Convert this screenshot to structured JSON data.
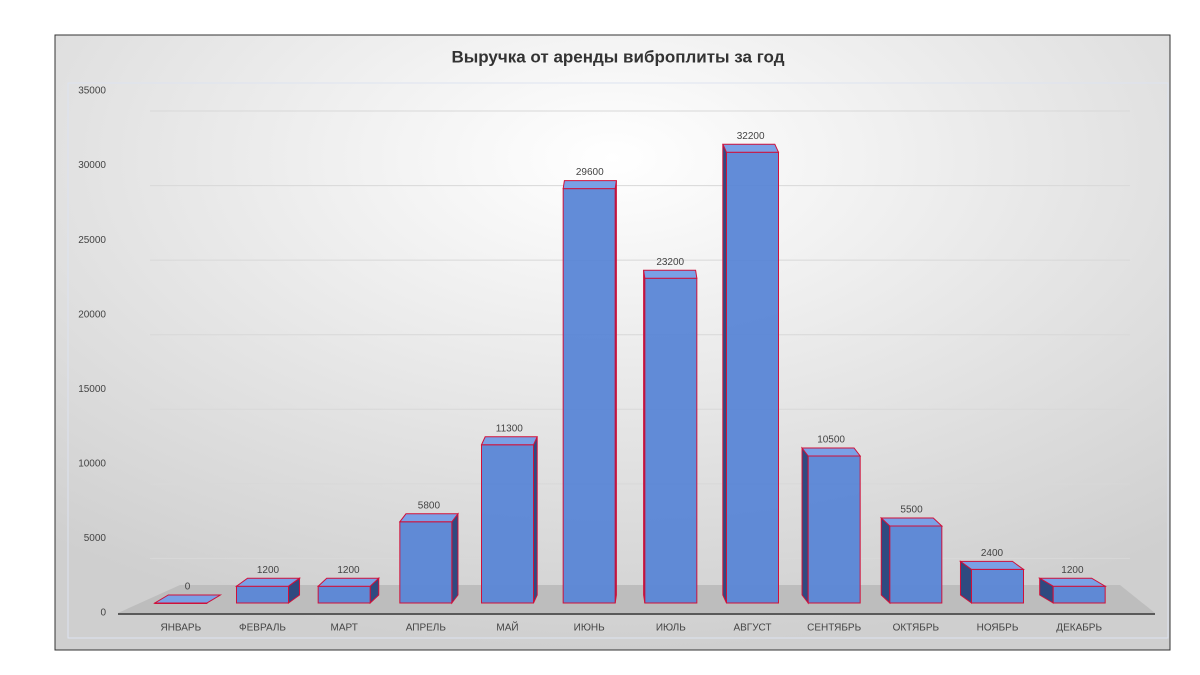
{
  "chart_data": {
    "type": "bar3d",
    "title": "Выручка от аренды виброплиты за год",
    "categories": [
      "ЯНВАРЬ",
      "ФЕВРАЛЬ",
      "МАРТ",
      "АПРЕЛЬ",
      "МАЙ",
      "ИЮНЬ",
      "ИЮЛЬ",
      "АВГУСТ",
      "СЕНТЯБРЬ",
      "ОКТЯБРЬ",
      "НОЯБРЬ",
      "ДЕКАБРЬ"
    ],
    "values": [
      0,
      1200,
      1200,
      5800,
      11300,
      29600,
      23200,
      32200,
      10500,
      5500,
      2400,
      1200
    ],
    "color": "#5a86d6",
    "edge_color": "#d0103a",
    "ylim": [
      0,
      35000
    ],
    "yticks": [
      0,
      5000,
      10000,
      15000,
      20000,
      25000,
      30000,
      35000
    ],
    "grid": true
  }
}
